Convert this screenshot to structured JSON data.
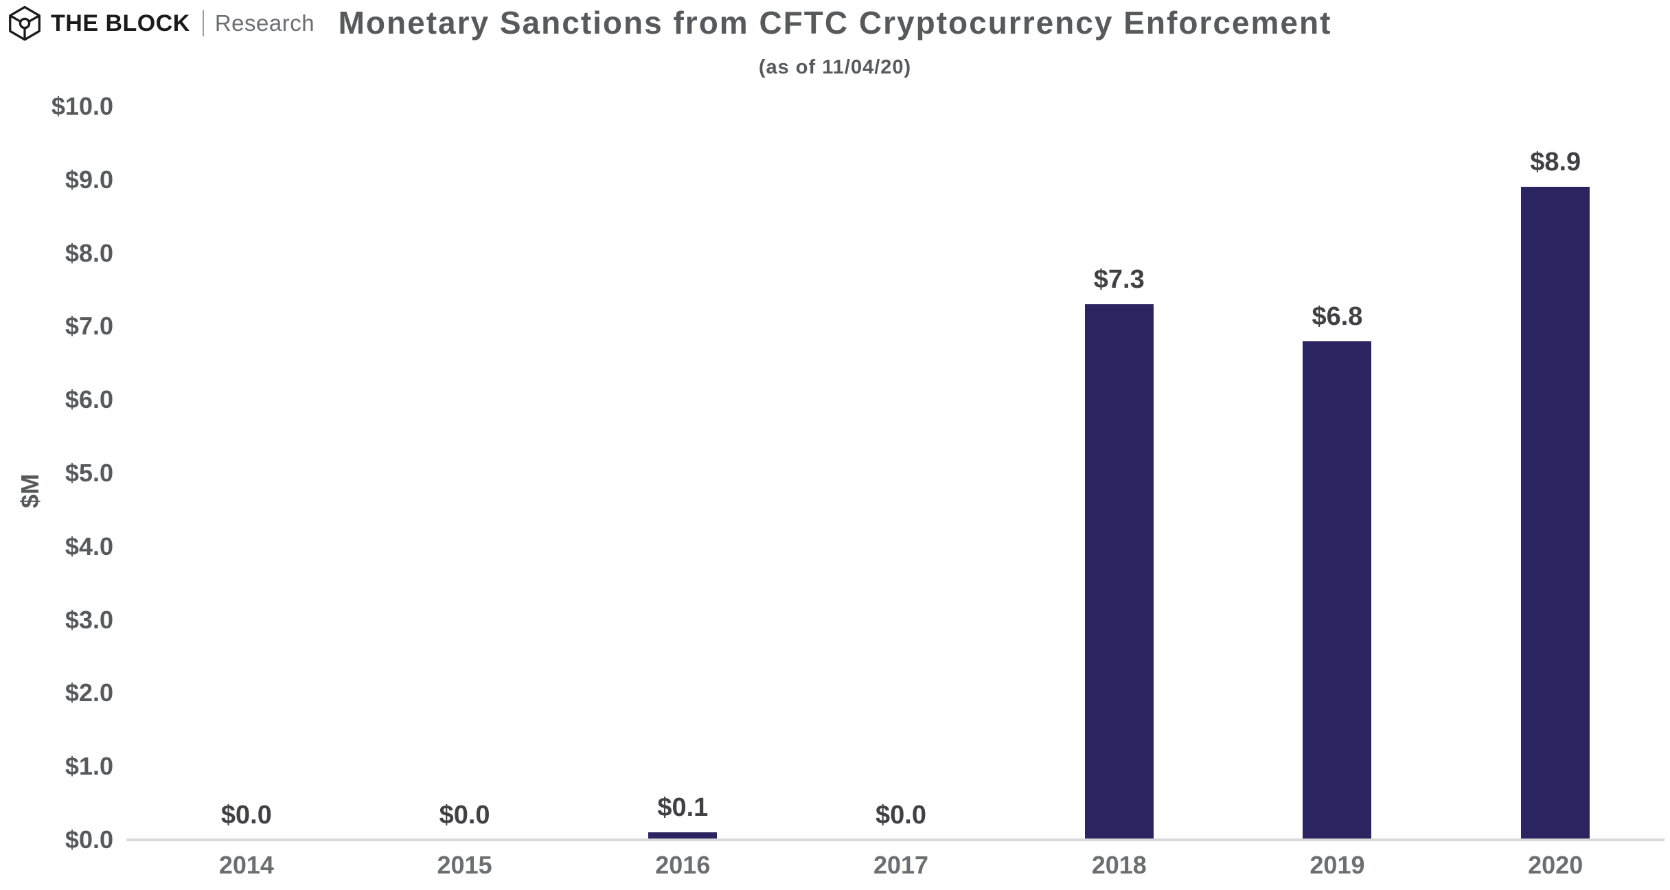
{
  "logo": {
    "brand": "THE BLOCK",
    "unit": "Research",
    "icon": "block-cube-logo"
  },
  "header": {
    "title": "Monetary Sanctions from CFTC Cryptocurrency Enforcement",
    "subtitle": "(as of 11/04/20)"
  },
  "chart_data": {
    "type": "bar",
    "title": "Monetary Sanctions from CFTC Cryptocurrency Enforcement",
    "subtitle": "(as of 11/04/20)",
    "categories": [
      "2014",
      "2015",
      "2016",
      "2017",
      "2018",
      "2019",
      "2020"
    ],
    "values": [
      0.0,
      0.0,
      0.1,
      0.0,
      7.3,
      6.8,
      8.9
    ],
    "value_labels": [
      "$0.0",
      "$0.0",
      "$0.1",
      "$0.0",
      "$7.3",
      "$6.8",
      "$8.9"
    ],
    "xlabel": "",
    "ylabel": "$M",
    "ylim": [
      0,
      10
    ],
    "ytick_step": 1,
    "ytick_labels": [
      "$0.0",
      "$1.0",
      "$2.0",
      "$3.0",
      "$4.0",
      "$5.0",
      "$6.0",
      "$7.0",
      "$8.0",
      "$9.0",
      "$10.0"
    ],
    "grid": false,
    "legend": false,
    "bar_color": "#2a2561"
  },
  "colors": {
    "title_text": "#58595b",
    "value_label_text": "#414042",
    "x_label_text": "#6d6e71",
    "axis_line": "#d8d8d8",
    "bar": "#2a2561",
    "logo_brand": "#1b1b1b",
    "logo_unit": "#6d6e71"
  }
}
